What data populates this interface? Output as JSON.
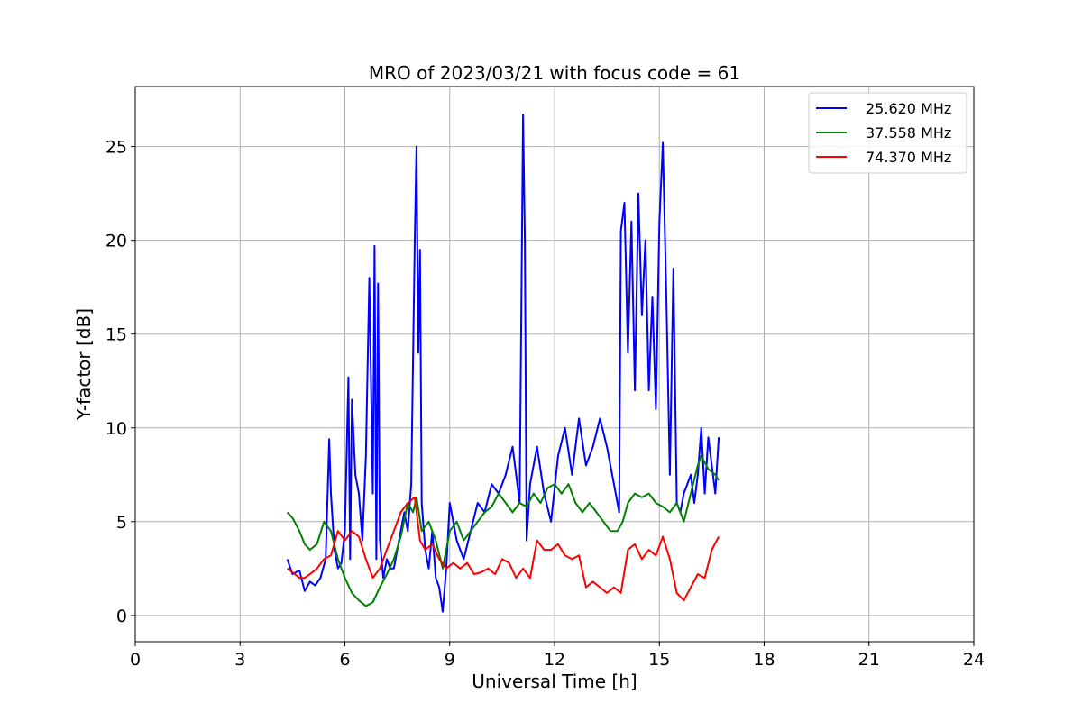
{
  "chart_data": {
    "type": "line",
    "title": "MRO of 2023/03/21 with focus code = 61",
    "xlabel": "Universal Time [h]",
    "ylabel": "Y-factor [dB]",
    "xlim": [
      0,
      24
    ],
    "ylim": [
      -1.4,
      28.2
    ],
    "xticks": [
      0,
      3,
      6,
      9,
      12,
      15,
      18,
      21,
      24
    ],
    "yticks": [
      0,
      5,
      10,
      15,
      20,
      25
    ],
    "grid": true,
    "legend_position": "top-right",
    "series": [
      {
        "name": "25.620 MHz",
        "color": "#0000ff",
        "x": [
          4.35,
          4.5,
          4.7,
          4.85,
          5.0,
          5.15,
          5.3,
          5.45,
          5.55,
          5.6,
          5.7,
          5.8,
          5.9,
          6.0,
          6.1,
          6.15,
          6.2,
          6.3,
          6.4,
          6.5,
          6.6,
          6.7,
          6.8,
          6.85,
          6.9,
          6.95,
          7.0,
          7.1,
          7.2,
          7.3,
          7.4,
          7.5,
          7.6,
          7.7,
          7.8,
          7.9,
          8.0,
          8.05,
          8.1,
          8.15,
          8.2,
          8.3,
          8.4,
          8.5,
          8.6,
          8.7,
          8.8,
          8.9,
          9.0,
          9.2,
          9.4,
          9.6,
          9.8,
          10.0,
          10.2,
          10.4,
          10.6,
          10.8,
          11.0,
          11.1,
          11.15,
          11.2,
          11.3,
          11.5,
          11.7,
          11.9,
          12.1,
          12.3,
          12.5,
          12.7,
          12.9,
          13.1,
          13.3,
          13.5,
          13.7,
          13.85,
          13.9,
          14.0,
          14.1,
          14.2,
          14.3,
          14.4,
          14.5,
          14.6,
          14.7,
          14.8,
          14.9,
          15.0,
          15.1,
          15.2,
          15.3,
          15.4,
          15.5,
          15.6,
          15.7,
          15.8,
          15.9,
          16.0,
          16.1,
          16.2,
          16.3,
          16.4,
          16.5,
          16.6,
          16.7
        ],
        "values": [
          3.0,
          2.2,
          2.4,
          1.3,
          1.8,
          1.6,
          2.0,
          3.0,
          9.4,
          6.5,
          3.5,
          2.5,
          2.8,
          4.5,
          12.7,
          3.0,
          11.5,
          7.5,
          6.5,
          4.0,
          8.5,
          18.0,
          6.5,
          19.7,
          3.0,
          17.7,
          4.0,
          2.0,
          3.0,
          2.5,
          2.5,
          3.5,
          4.5,
          5.5,
          4.5,
          7.0,
          20.0,
          25.0,
          14.0,
          19.5,
          6.0,
          3.5,
          2.5,
          4.5,
          2.0,
          1.5,
          0.2,
          2.5,
          6.0,
          4.0,
          3.0,
          4.5,
          6.0,
          5.5,
          7.0,
          6.5,
          7.5,
          9.0,
          6.0,
          26.7,
          20.0,
          4.0,
          7.0,
          9.0,
          6.5,
          5.0,
          8.5,
          10.0,
          7.5,
          10.5,
          8.0,
          9.0,
          10.5,
          9.0,
          7.0,
          5.5,
          20.5,
          22.0,
          14.0,
          21.0,
          12.0,
          22.5,
          16.0,
          20.0,
          12.0,
          17.0,
          11.0,
          21.0,
          25.2,
          17.0,
          7.5,
          18.5,
          6.0,
          5.5,
          6.5,
          7.0,
          7.5,
          6.0,
          7.5,
          10.0,
          6.5,
          9.5,
          8.0,
          6.5,
          9.5
        ]
      },
      {
        "name": "37.558 MHz",
        "color": "#008000",
        "x": [
          4.35,
          4.5,
          4.7,
          4.85,
          5.0,
          5.2,
          5.4,
          5.6,
          5.8,
          6.0,
          6.2,
          6.4,
          6.6,
          6.8,
          7.0,
          7.2,
          7.4,
          7.6,
          7.8,
          7.95,
          8.05,
          8.2,
          8.4,
          8.6,
          8.8,
          9.0,
          9.2,
          9.4,
          9.6,
          9.8,
          10.0,
          10.2,
          10.4,
          10.6,
          10.8,
          11.0,
          11.2,
          11.4,
          11.6,
          11.8,
          12.0,
          12.2,
          12.4,
          12.6,
          12.8,
          13.0,
          13.2,
          13.4,
          13.6,
          13.8,
          13.95,
          14.1,
          14.3,
          14.5,
          14.7,
          14.9,
          15.1,
          15.3,
          15.5,
          15.7,
          15.9,
          16.1,
          16.2,
          16.4,
          16.6,
          16.7
        ],
        "values": [
          5.5,
          5.2,
          4.5,
          3.8,
          3.5,
          3.8,
          5.0,
          4.5,
          3.0,
          2.0,
          1.2,
          0.8,
          0.5,
          0.7,
          1.5,
          2.2,
          3.0,
          4.2,
          6.0,
          5.5,
          6.3,
          4.5,
          5.0,
          4.0,
          2.5,
          4.5,
          5.0,
          4.0,
          4.5,
          5.0,
          5.5,
          5.8,
          6.5,
          6.0,
          5.5,
          6.0,
          5.8,
          6.5,
          6.0,
          6.8,
          7.0,
          6.5,
          7.0,
          6.0,
          5.5,
          6.0,
          5.5,
          5.0,
          4.5,
          4.5,
          5.0,
          6.0,
          6.5,
          6.3,
          6.5,
          6.0,
          5.8,
          5.5,
          6.0,
          5.0,
          6.5,
          8.0,
          8.5,
          7.8,
          7.5,
          7.2
        ]
      },
      {
        "name": "74.370 MHz",
        "color": "#ff0000",
        "x": [
          4.35,
          4.5,
          4.7,
          4.85,
          5.0,
          5.2,
          5.4,
          5.6,
          5.8,
          6.0,
          6.2,
          6.4,
          6.6,
          6.8,
          7.0,
          7.2,
          7.4,
          7.6,
          7.8,
          8.0,
          8.15,
          8.3,
          8.5,
          8.7,
          8.9,
          9.1,
          9.3,
          9.5,
          9.7,
          9.9,
          10.1,
          10.3,
          10.5,
          10.7,
          10.9,
          11.1,
          11.3,
          11.5,
          11.7,
          11.9,
          12.1,
          12.3,
          12.5,
          12.7,
          12.9,
          13.1,
          13.3,
          13.5,
          13.7,
          13.9,
          14.1,
          14.3,
          14.5,
          14.7,
          14.9,
          15.1,
          15.3,
          15.5,
          15.7,
          15.9,
          16.1,
          16.3,
          16.5,
          16.7
        ],
        "values": [
          2.5,
          2.3,
          2.0,
          2.0,
          2.2,
          2.5,
          3.0,
          3.2,
          4.5,
          4.0,
          4.5,
          4.2,
          3.0,
          2.0,
          2.5,
          3.5,
          4.5,
          5.5,
          6.0,
          6.3,
          4.0,
          3.5,
          3.8,
          3.0,
          2.5,
          2.8,
          2.5,
          2.8,
          2.2,
          2.3,
          2.5,
          2.2,
          3.0,
          2.8,
          2.0,
          2.5,
          2.0,
          4.0,
          3.5,
          3.5,
          3.8,
          3.2,
          3.0,
          3.2,
          1.5,
          1.8,
          1.5,
          1.2,
          1.5,
          1.2,
          3.5,
          3.8,
          3.0,
          3.5,
          3.2,
          4.2,
          3.0,
          1.2,
          0.8,
          1.5,
          2.2,
          2.0,
          3.5,
          4.2
        ]
      }
    ]
  }
}
